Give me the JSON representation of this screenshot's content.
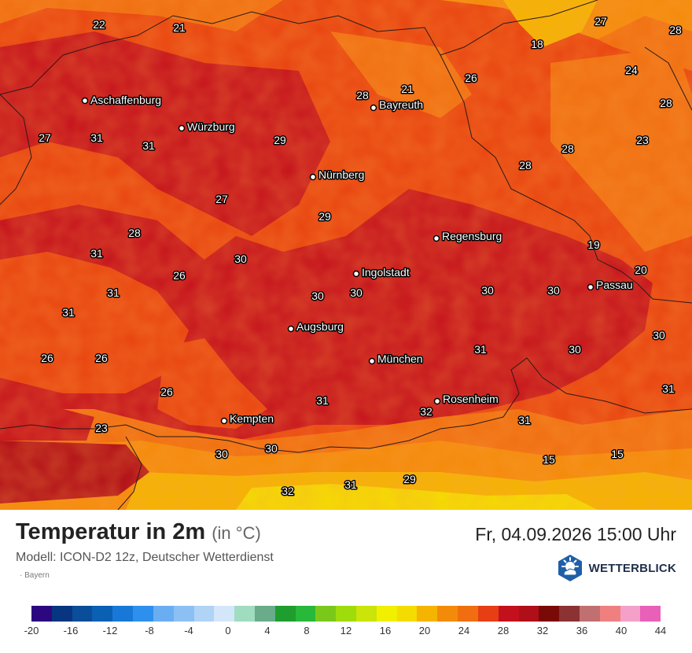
{
  "map": {
    "region_color": "#c4101c",
    "cities": [
      {
        "name": "Aschaffenburg",
        "id": "aschaffenburg"
      },
      {
        "name": "Würzburg",
        "id": "wuerzburg"
      },
      {
        "name": "Bayreuth",
        "id": "bayreuth"
      },
      {
        "name": "Nürnberg",
        "id": "nuernberg"
      },
      {
        "name": "Regensburg",
        "id": "regensburg"
      },
      {
        "name": "Ingolstadt",
        "id": "ingolstadt"
      },
      {
        "name": "Passau",
        "id": "passau"
      },
      {
        "name": "Augsburg",
        "id": "augsburg"
      },
      {
        "name": "München",
        "id": "muenchen"
      },
      {
        "name": "Rosenheim",
        "id": "rosenheim"
      },
      {
        "name": "Kempten",
        "id": "kempten"
      }
    ],
    "temperature_labels": [
      "22",
      "21",
      "27",
      "28",
      "18",
      "26",
      "24",
      "28",
      "21",
      "28",
      "27",
      "31",
      "31",
      "29",
      "28",
      "23",
      "28",
      "27",
      "29",
      "28",
      "19",
      "31",
      "30",
      "26",
      "20",
      "31",
      "30",
      "30",
      "30",
      "30",
      "31",
      "31",
      "30",
      "30",
      "26",
      "26",
      "31",
      "26",
      "31",
      "32",
      "31",
      "23",
      "30",
      "30",
      "15",
      "15",
      "32",
      "31",
      "29"
    ]
  },
  "footer": {
    "title": "Temperatur in 2m",
    "unit": "(in °C)",
    "datetime": "Fr, 04.09.2026 15:00 Uhr",
    "model": "Modell: ICON-D2 12z, Deutscher Wetterdienst",
    "region": "Bayern",
    "brand": "WETTERBLICK",
    "brand_icon": "sun-cloud-icon"
  },
  "legend": {
    "colors": [
      "#2c0780",
      "#07357f",
      "#0a4d98",
      "#0a60b3",
      "#1878d8",
      "#2e90ee",
      "#6aaef2",
      "#8cc0f4",
      "#b0d3f6",
      "#d4e6fa",
      "#9fdcc0",
      "#6aab8a",
      "#1e9e2e",
      "#28b83a",
      "#7ac91a",
      "#9fdc0c",
      "#cbe40a",
      "#f0f000",
      "#f4dc00",
      "#f4b400",
      "#f48a0a",
      "#f06e10",
      "#e83e14",
      "#c4101c",
      "#b00e18",
      "#7a0a08",
      "#8c3232",
      "#c07070",
      "#f08080",
      "#f4a0c8",
      "#e860b8"
    ],
    "tick_labels": [
      "-20",
      "-16",
      "-12",
      "-8",
      "-4",
      "0",
      "4",
      "8",
      "12",
      "16",
      "20",
      "24",
      "28",
      "32",
      "36",
      "40",
      "44"
    ]
  }
}
